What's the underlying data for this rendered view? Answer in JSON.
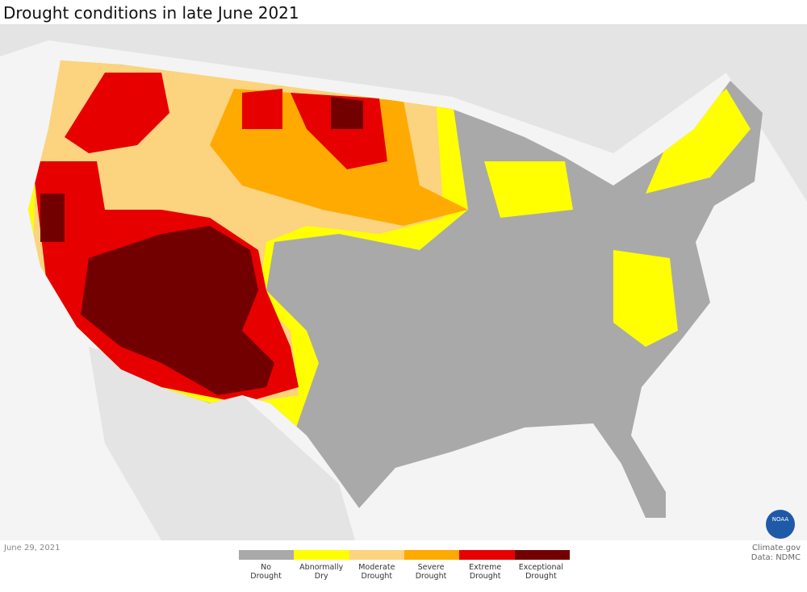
{
  "title": "Drought conditions in late June 2021",
  "date": "June 29, 2021",
  "credit": {
    "source": "Climate.gov",
    "data": "Data: NDMC"
  },
  "logo": "NOAA",
  "legend": {
    "items": [
      {
        "label": "No Drought",
        "color": "#a9a9a9"
      },
      {
        "label": "Abnormally Dry",
        "color": "#ffff00"
      },
      {
        "label": "Moderate Drought",
        "color": "#fcd37f"
      },
      {
        "label": "Severe Drought",
        "color": "#ffaa00"
      },
      {
        "label": "Extreme Drought",
        "color": "#e60000"
      },
      {
        "label": "Exceptional Drought",
        "color": "#730000"
      }
    ]
  }
}
